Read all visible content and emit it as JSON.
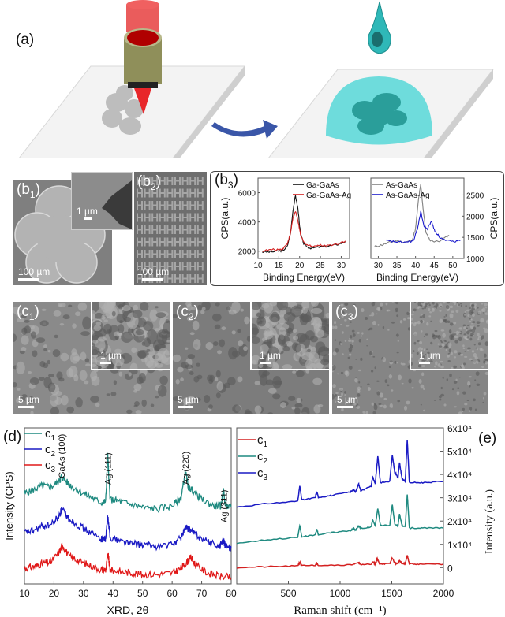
{
  "figure": {
    "panel_a": {
      "label": "(a)",
      "colors": {
        "laser": "#e8262a",
        "objective": "#8f8f5a",
        "droplet": "#2fb8b8",
        "dome": "#5fd9d9",
        "arrow": "#3a56a8",
        "substrate": "#f2f2f2"
      }
    },
    "panel_b1": {
      "label_main": "(b",
      "label_sub": "1",
      "label_close": ")",
      "scale_main": "100 µm",
      "scale_inset": "1 µm"
    },
    "panel_b2": {
      "label_main": "(b",
      "label_sub": "2",
      "label_close": ")",
      "scale_main": "100 µm"
    },
    "panel_b3": {
      "label_main": "(b",
      "label_sub": "3",
      "label_close": ")"
    },
    "panel_c": [
      {
        "label_main": "(c",
        "label_sub": "1",
        "label_close": ")",
        "scale_main": "5 µm",
        "scale_inset": "1 µm"
      },
      {
        "label_main": "(c",
        "label_sub": "2",
        "label_close": ")",
        "scale_main": "5 µm",
        "scale_inset": "1 µm"
      },
      {
        "label_main": "(c",
        "label_sub": "3",
        "label_close": ")",
        "scale_main": "5 µm",
        "scale_inset": "1 µm"
      }
    ],
    "panel_d": {
      "label": "(d)"
    },
    "panel_e": {
      "label": "(e)"
    }
  },
  "chart_data": [
    {
      "id": "b3-ga",
      "type": "line",
      "title": "",
      "xlabel": "Binding Energy(eV)",
      "ylabel": "CPS(a.u.)",
      "xlim": [
        10,
        32
      ],
      "ylim": [
        1500,
        7000
      ],
      "xticks": [
        10,
        15,
        20,
        25,
        30
      ],
      "yticks": [
        2000,
        4000,
        6000
      ],
      "legend": "top-right",
      "series": [
        {
          "name": "Ga-GaAs",
          "color": "#111111",
          "x": [
            11,
            13,
            15,
            16,
            17,
            17.8,
            18.4,
            19.0,
            19.6,
            20.2,
            21,
            22,
            23,
            25,
            27,
            29,
            31
          ],
          "y": [
            1950,
            1950,
            2000,
            2050,
            2300,
            3200,
            4800,
            5800,
            4900,
            3200,
            2500,
            2250,
            2200,
            2300,
            2350,
            2450,
            2650
          ]
        },
        {
          "name": "Ga-GaAs-Ag",
          "color": "#d42020",
          "x": [
            11,
            13,
            15,
            16,
            17,
            17.8,
            18.4,
            19.0,
            19.6,
            20.2,
            21,
            22,
            23,
            25,
            27,
            29,
            31
          ],
          "y": [
            2000,
            2100,
            2100,
            2200,
            2500,
            3200,
            4300,
            4700,
            4100,
            3100,
            2600,
            2400,
            2350,
            2400,
            2400,
            2500,
            2700
          ]
        }
      ]
    },
    {
      "id": "b3-as",
      "type": "line",
      "title": "",
      "xlabel": "Binding Energy(eV)",
      "ylabel": "CPS(a.u.)",
      "xlim": [
        28,
        53
      ],
      "ylim": [
        1000,
        2900
      ],
      "xticks": [
        30,
        35,
        40,
        45,
        50
      ],
      "yticks": [
        1000,
        1500,
        2000,
        2500
      ],
      "legend": "top-left",
      "series": [
        {
          "name": "As-GaAs",
          "color": "#808080",
          "x": [
            29,
            31,
            33,
            35,
            37,
            39,
            40,
            40.8,
            41.4,
            42,
            42.8,
            44,
            46,
            48,
            49
          ],
          "y": [
            1280,
            1320,
            1380,
            1420,
            1380,
            1420,
            1700,
            2400,
            2750,
            2200,
            1600,
            1420,
            1400,
            1500,
            1550
          ]
        },
        {
          "name": "As-GaAs-Ag",
          "color": "#1a1acc",
          "x": [
            32,
            34,
            36,
            38,
            39.5,
            40.5,
            41.4,
            42.3,
            43.2,
            44.2,
            45.2,
            46.5,
            48,
            50,
            52
          ],
          "y": [
            1420,
            1400,
            1380,
            1390,
            1420,
            1700,
            2100,
            1750,
            1700,
            1880,
            1650,
            1500,
            1420,
            1400,
            1420
          ]
        }
      ]
    },
    {
      "id": "d-xrd",
      "type": "line",
      "title": "",
      "xlabel": "XRD, 2θ",
      "ylabel": "Intensity (CPS)",
      "xlim": [
        10,
        80
      ],
      "ylim": [
        0,
        1
      ],
      "xticks": [
        10,
        20,
        30,
        40,
        50,
        60,
        70,
        80
      ],
      "yticks": [],
      "legend": "top-left",
      "annotations": [
        {
          "text": "GaAs (100)",
          "x": 22.5
        },
        {
          "text": "Ag (111)",
          "x": 38.2
        },
        {
          "text": "Ag (220)",
          "x": 64.5
        },
        {
          "text": "Ag (311)",
          "x": 77.4
        }
      ],
      "series": [
        {
          "name": "c1",
          "color": "#1f8a80",
          "x": [
            10,
            13,
            16,
            19,
            22,
            22.5,
            25,
            28,
            32,
            36,
            37.5,
            38.2,
            39,
            42,
            46,
            50,
            55,
            60,
            63,
            64.5,
            65.5,
            67,
            70,
            74,
            76.5,
            77.4,
            78,
            80
          ],
          "y": [
            0.58,
            0.6,
            0.63,
            0.62,
            0.66,
            0.69,
            0.64,
            0.6,
            0.56,
            0.52,
            0.53,
            0.82,
            0.54,
            0.53,
            0.51,
            0.49,
            0.48,
            0.5,
            0.55,
            0.72,
            0.62,
            0.6,
            0.54,
            0.5,
            0.5,
            0.6,
            0.5,
            0.49
          ]
        },
        {
          "name": "c2",
          "color": "#1a1ac4",
          "x": [
            10,
            13,
            16,
            19,
            22,
            22.5,
            25,
            28,
            32,
            36,
            37.5,
            38.2,
            39,
            42,
            46,
            50,
            55,
            60,
            63,
            64.5,
            66,
            68,
            72,
            76,
            77.4,
            78,
            80
          ],
          "y": [
            0.33,
            0.34,
            0.37,
            0.38,
            0.44,
            0.48,
            0.42,
            0.38,
            0.33,
            0.29,
            0.29,
            0.43,
            0.3,
            0.28,
            0.26,
            0.25,
            0.24,
            0.25,
            0.3,
            0.36,
            0.35,
            0.32,
            0.27,
            0.24,
            0.28,
            0.24,
            0.23
          ]
        },
        {
          "name": "c3",
          "color": "#e01818",
          "x": [
            10,
            13,
            16,
            19,
            22,
            22.8,
            25,
            28,
            32,
            36,
            37.5,
            38.3,
            39,
            42,
            46,
            50,
            55,
            60,
            63,
            65,
            66.3,
            68,
            72,
            76,
            80
          ],
          "y": [
            0.1,
            0.11,
            0.13,
            0.14,
            0.21,
            0.25,
            0.18,
            0.15,
            0.12,
            0.09,
            0.09,
            0.19,
            0.09,
            0.08,
            0.07,
            0.06,
            0.06,
            0.07,
            0.1,
            0.14,
            0.17,
            0.12,
            0.07,
            0.05,
            0.04
          ]
        }
      ]
    },
    {
      "id": "e-raman",
      "type": "line",
      "title": "",
      "xlabel": "Raman shift (cm⁻¹)",
      "ylabel": "Intensity (a.u.)",
      "xlim": [
        0,
        2000
      ],
      "ylim": [
        -7000,
        60000
      ],
      "xticks": [
        0,
        500,
        1000,
        1500,
        2000
      ],
      "yticks": [
        0,
        10000,
        20000,
        30000,
        40000,
        50000,
        60000
      ],
      "ytick_labels": [
        "0",
        "1x10⁴",
        "2x10⁴",
        "3x10⁴",
        "4x10⁴",
        "5x10⁴",
        "6x10⁴"
      ],
      "legend": "top-left",
      "series": [
        {
          "name": "c1",
          "color": "#d42020",
          "x": [
            0,
            300,
            590,
            610,
            630,
            760,
            775,
            790,
            1100,
            1180,
            1200,
            1300,
            1320,
            1340,
            1360,
            1380,
            1480,
            1505,
            1530,
            1560,
            1575,
            1600,
            1630,
            1650,
            1670,
            1800,
            2000
          ],
          "y": [
            0,
            400,
            700,
            2300,
            800,
            1000,
            1900,
            1000,
            1200,
            2000,
            1300,
            1500,
            2500,
            1600,
            3900,
            1700,
            1600,
            4200,
            1800,
            1700,
            3000,
            1700,
            1700,
            5200,
            1600,
            1500,
            1500
          ]
        },
        {
          "name": "c2",
          "color": "#1f8a80",
          "x": [
            0,
            300,
            590,
            610,
            630,
            760,
            775,
            790,
            920,
            1100,
            1130,
            1150,
            1180,
            1200,
            1300,
            1315,
            1340,
            1365,
            1390,
            1480,
            1505,
            1530,
            1560,
            1575,
            1600,
            1630,
            1650,
            1670,
            1800,
            2000
          ],
          "y": [
            10500,
            12000,
            13000,
            18000,
            13200,
            14000,
            16500,
            14200,
            15000,
            16000,
            16800,
            16000,
            18000,
            16800,
            17500,
            20500,
            18000,
            25500,
            18200,
            18000,
            27000,
            18500,
            18000,
            23000,
            18000,
            17500,
            31500,
            17000,
            17000,
            17000
          ]
        },
        {
          "name": "c3",
          "color": "#1a1ac4",
          "x": [
            0,
            300,
            590,
            610,
            630,
            760,
            775,
            790,
            920,
            1100,
            1130,
            1150,
            1180,
            1200,
            1300,
            1315,
            1340,
            1365,
            1390,
            1480,
            1505,
            1530,
            1545,
            1560,
            1575,
            1600,
            1630,
            1650,
            1670,
            1800,
            2000
          ],
          "y": [
            26000,
            27500,
            28500,
            35000,
            29000,
            30000,
            32500,
            30200,
            31000,
            32500,
            33500,
            32500,
            36000,
            33000,
            35000,
            39000,
            36000,
            48000,
            36500,
            37000,
            48500,
            40500,
            40000,
            38500,
            45000,
            38000,
            37000,
            55000,
            36500,
            36500,
            37000
          ]
        }
      ]
    }
  ]
}
